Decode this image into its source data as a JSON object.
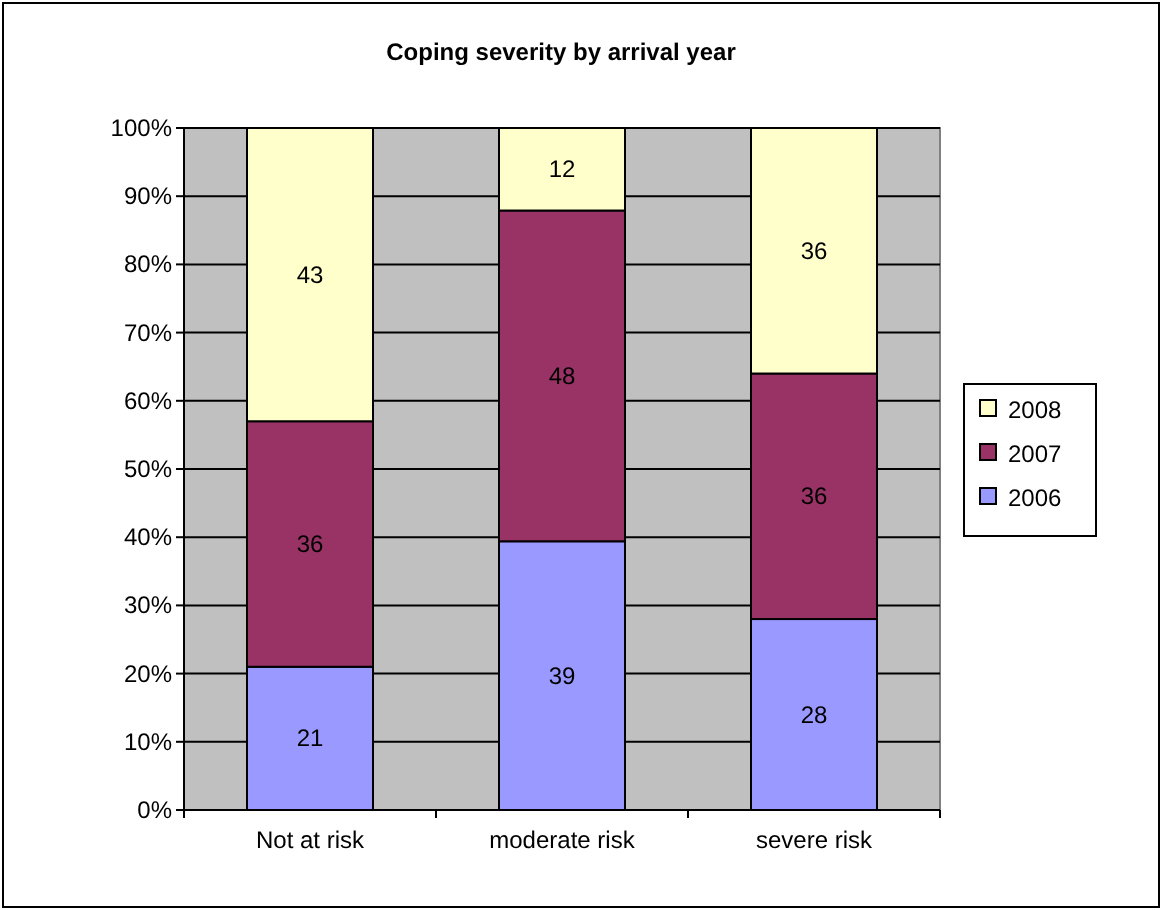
{
  "chart_data": {
    "type": "bar",
    "title": "Coping severity by arrival year",
    "categories": [
      "Not at risk",
      "moderate risk",
      "severe risk"
    ],
    "stacked": true,
    "series": [
      {
        "name": "2006",
        "color": "#9999ff",
        "values": [
          21,
          39.4,
          28
        ],
        "value_labels": [
          "21",
          "39",
          "28"
        ]
      },
      {
        "name": "2007",
        "color": "#993366",
        "values": [
          36,
          48.5,
          36
        ],
        "value_labels": [
          "36",
          "48",
          "36"
        ]
      },
      {
        "name": "2008",
        "color": "#ffffcc",
        "values": [
          43,
          12.1,
          36
        ],
        "value_labels": [
          "43",
          "12",
          "36"
        ]
      }
    ],
    "ylim": [
      0,
      100
    ],
    "yticks": [
      {
        "value": 0,
        "label": "0%"
      },
      {
        "value": 10,
        "label": "10%"
      },
      {
        "value": 20,
        "label": "20%"
      },
      {
        "value": 30,
        "label": "30%"
      },
      {
        "value": 40,
        "label": "40%"
      },
      {
        "value": 50,
        "label": "50%"
      },
      {
        "value": 60,
        "label": "60%"
      },
      {
        "value": 70,
        "label": "70%"
      },
      {
        "value": 80,
        "label": "80%"
      },
      {
        "value": 90,
        "label": "90%"
      },
      {
        "value": 100,
        "label": "100%"
      }
    ],
    "grid": "y",
    "legend": "right"
  }
}
